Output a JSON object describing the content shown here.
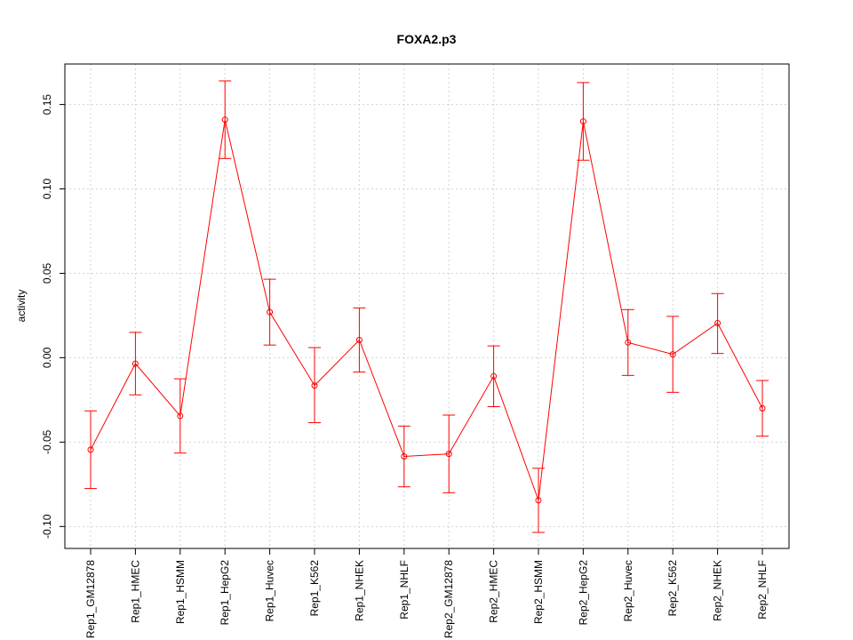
{
  "chart_data": {
    "type": "line",
    "title": "FOXA2.p3",
    "xlabel": "",
    "ylabel": "activity",
    "ylim": [
      -0.113,
      0.174
    ],
    "yticks": [
      -0.1,
      -0.05,
      0.0,
      0.05,
      0.1,
      0.15
    ],
    "ytick_labels": [
      "-0.10",
      "-0.05",
      "0.00",
      "0.05",
      "0.10",
      "0.15"
    ],
    "grid": true,
    "categories": [
      "Rep1_GM12878",
      "Rep1_HMEC",
      "Rep1_HSMM",
      "Rep1_HepG2",
      "Rep1_Huvec",
      "Rep1_K562",
      "Rep1_NHEK",
      "Rep1_NHLF",
      "Rep2_GM12878",
      "Rep2_HMEC",
      "Rep2_HSMM",
      "Rep2_HepG2",
      "Rep2_Huvec",
      "Rep2_K562",
      "Rep2_NHEK",
      "Rep2_NHLF"
    ],
    "values": [
      -0.0545,
      -0.0035,
      -0.0345,
      0.141,
      0.027,
      -0.0165,
      0.0105,
      -0.0585,
      -0.057,
      -0.011,
      -0.0845,
      0.14,
      0.009,
      0.002,
      0.0205,
      -0.03
    ],
    "err_upper": [
      -0.0315,
      0.015,
      -0.0125,
      0.164,
      0.0465,
      0.006,
      0.0295,
      -0.0405,
      -0.034,
      0.007,
      -0.0655,
      0.163,
      0.0285,
      0.0245,
      0.038,
      -0.0135
    ],
    "err_lower": [
      -0.0775,
      -0.022,
      -0.0565,
      0.118,
      0.0075,
      -0.0385,
      -0.0085,
      -0.0765,
      -0.08,
      -0.029,
      -0.1035,
      0.117,
      -0.0105,
      -0.0205,
      0.0025,
      -0.0465
    ],
    "series_color": "#ff0000"
  }
}
